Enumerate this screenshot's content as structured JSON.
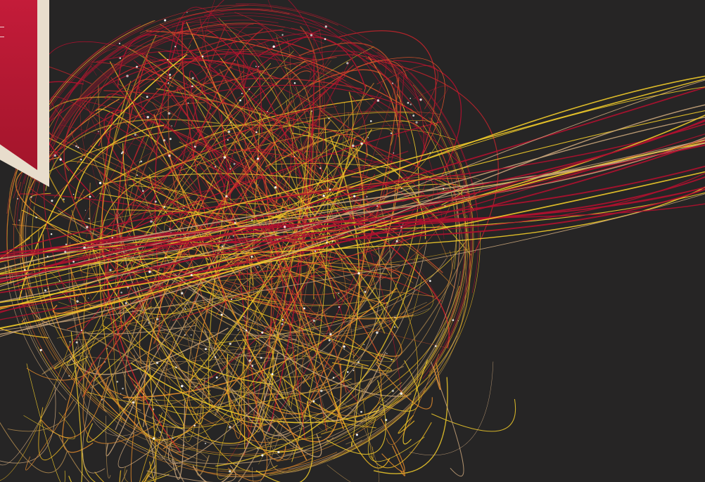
{
  "scene": {
    "background_color": "#262525",
    "palette": [
      "#b0112f",
      "#c8242c",
      "#d9502a",
      "#e28a2b",
      "#e6b422",
      "#f2cc2a",
      "#c9a57a",
      "#b08a4e"
    ],
    "star_color": "#ffffff",
    "banner": {
      "fill": "#b8182f",
      "frame": "#e8ddcc"
    }
  }
}
